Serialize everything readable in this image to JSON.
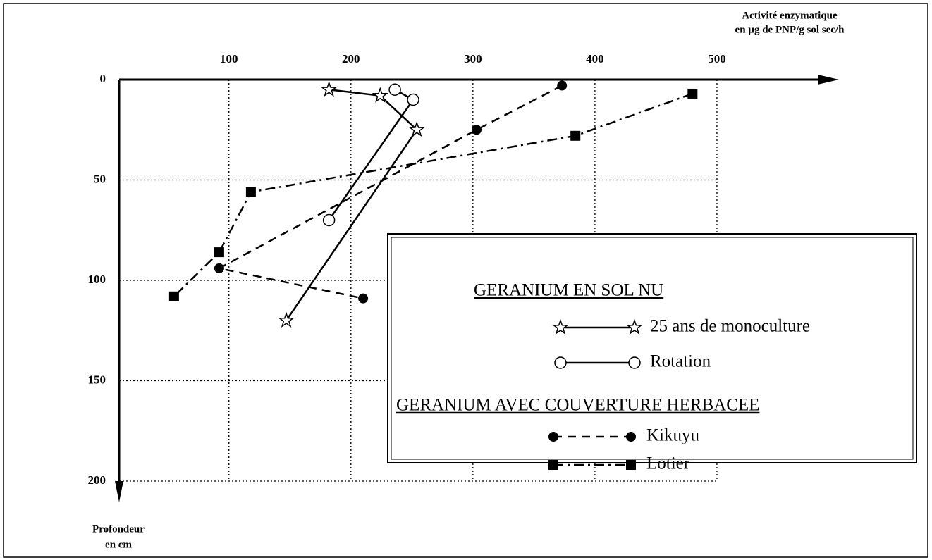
{
  "chart_data": {
    "type": "line",
    "xlabel": [
      "Activité enzymatique",
      "en µg de PNP/g sol sec/h"
    ],
    "ylabel": [
      "Profondeur",
      "en cm"
    ],
    "xlim": [
      10,
      600
    ],
    "xticks": [
      100,
      200,
      300,
      400,
      500
    ],
    "ylim": [
      0,
      200
    ],
    "yticks": [
      0,
      50,
      100,
      150,
      200
    ],
    "grid": true,
    "legend": "lower right",
    "legend_groups": [
      "GERANIUM EN SOL NU",
      "GERANIUM AVEC COUVERTURE HERBACEE"
    ],
    "series": [
      {
        "name": "25 ans de monoculture",
        "color": "#000000",
        "marker": "star",
        "linestyle": "solid",
        "group": 0,
        "x": [
          182,
          224,
          254,
          147
        ],
        "values": [
          5,
          8,
          25,
          120
        ]
      },
      {
        "name": "Rotation",
        "color": "#000000",
        "marker": "circle",
        "linestyle": "solid",
        "group": 0,
        "x": [
          236,
          251,
          182
        ],
        "values": [
          5,
          10,
          70
        ]
      },
      {
        "name": "Kikuyu",
        "color": "#000000",
        "marker": "octagon",
        "linestyle": "dashed",
        "group": 1,
        "x": [
          373,
          303,
          92,
          210
        ],
        "values": [
          3,
          25,
          94,
          109
        ]
      },
      {
        "name": "Lotier",
        "color": "#000000",
        "marker": "square",
        "linestyle": "dashdot",
        "group": 1,
        "x": [
          480,
          384,
          118,
          92,
          55
        ],
        "values": [
          7,
          28,
          56,
          86,
          108
        ]
      }
    ]
  }
}
